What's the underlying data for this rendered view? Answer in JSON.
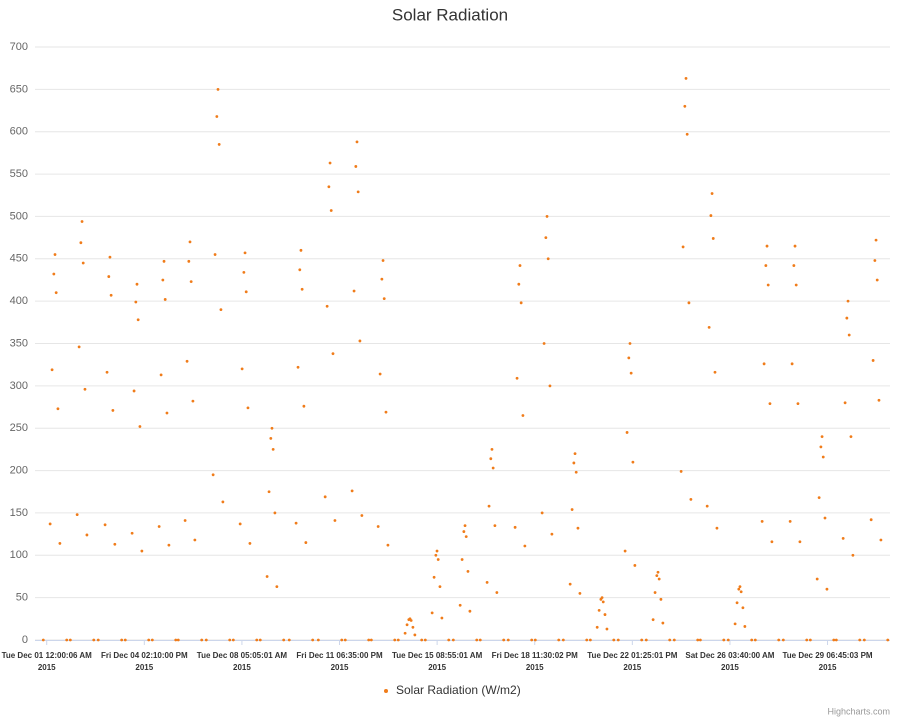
{
  "chart_data": {
    "type": "scatter",
    "title": "Solar Radiation",
    "credits": "Highcharts.com",
    "legend": "bottom",
    "grid": true,
    "ylim": [
      0,
      700
    ],
    "yticks": [
      0,
      50,
      100,
      150,
      200,
      250,
      300,
      350,
      400,
      450,
      500,
      550,
      600,
      650,
      700
    ],
    "xlim": [
      -120,
      8640
    ],
    "xticks": [
      {
        "value": 0,
        "label": "Tue Dec 01 12:00:06 AM",
        "year": "2015"
      },
      {
        "value": 1000,
        "label": "Fri Dec 04 02:10:00 PM",
        "year": "2015"
      },
      {
        "value": 2000,
        "label": "Tue Dec 08 05:05:01 AM",
        "year": "2015"
      },
      {
        "value": 3000,
        "label": "Fri Dec 11 06:35:00 PM",
        "year": "2015"
      },
      {
        "value": 4000,
        "label": "Tue Dec 15 08:55:01 AM",
        "year": "2015"
      },
      {
        "value": 5000,
        "label": "Fri Dec 18 11:30:02 PM",
        "year": "2015"
      },
      {
        "value": 6000,
        "label": "Tue Dec 22 01:25:01 PM",
        "year": "2015"
      },
      {
        "value": 7000,
        "label": "Sat Dec 26 03:40:00 AM",
        "year": "2015"
      },
      {
        "value": 8000,
        "label": "Tue Dec 29 06:45:03 PM",
        "year": "2015"
      }
    ],
    "series": [
      {
        "name": "Solar Radiation (W/m2)",
        "color": "#f07c1a",
        "x": [
          -35,
          35,
          55,
          73,
          85,
          97,
          115,
          135,
          205,
          242,
          312,
          332,
          350,
          362,
          374,
          392,
          412,
          482,
          528,
          598,
          618,
          636,
          648,
          660,
          678,
          698,
          768,
          805,
          875,
          895,
          913,
          925,
          937,
          955,
          975,
          1045,
          1082,
          1152,
          1172,
          1190,
          1202,
          1214,
          1232,
          1252,
          1322,
          1348,
          1418,
          1438,
          1456,
          1468,
          1480,
          1498,
          1518,
          1588,
          1635,
          1705,
          1725,
          1743,
          1755,
          1767,
          1785,
          1805,
          1875,
          1912,
          1982,
          2002,
          2020,
          2032,
          2044,
          2062,
          2082,
          2152,
          2188,
          2258,
          2278,
          2296,
          2308,
          2320,
          2338,
          2358,
          2428,
          2485,
          2555,
          2575,
          2593,
          2605,
          2617,
          2635,
          2655,
          2725,
          2783,
          2853,
          2873,
          2891,
          2903,
          2915,
          2933,
          2953,
          3023,
          3059,
          3129,
          3149,
          3167,
          3179,
          3191,
          3209,
          3229,
          3299,
          3326,
          3396,
          3416,
          3434,
          3446,
          3458,
          3476,
          3496,
          3566,
          3602,
          3672,
          3692,
          3710,
          3722,
          3734,
          3752,
          3772,
          3842,
          3879,
          3949,
          3969,
          3987,
          3999,
          4011,
          4029,
          4049,
          4119,
          4166,
          4236,
          4256,
          4274,
          4286,
          4298,
          4316,
          4336,
          4406,
          4442,
          4512,
          4532,
          4550,
          4562,
          4574,
          4592,
          4612,
          4682,
          4729,
          4799,
          4819,
          4837,
          4849,
          4861,
          4879,
          4899,
          4969,
          5006,
          5076,
          5096,
          5114,
          5126,
          5138,
          5156,
          5176,
          5246,
          5293,
          5363,
          5383,
          5401,
          5413,
          5425,
          5443,
          5463,
          5533,
          5570,
          5640,
          5660,
          5678,
          5690,
          5702,
          5720,
          5740,
          5810,
          5856,
          5926,
          5946,
          5964,
          5976,
          5988,
          6006,
          6026,
          6096,
          6143,
          6213,
          6233,
          6251,
          6263,
          6275,
          6293,
          6313,
          6383,
          6430,
          6500,
          6520,
          6538,
          6550,
          6562,
          6580,
          6600,
          6670,
          6697,
          6767,
          6787,
          6805,
          6817,
          6829,
          6847,
          6867,
          6937,
          6983,
          7053,
          7073,
          7091,
          7103,
          7115,
          7133,
          7153,
          7223,
          7260,
          7330,
          7350,
          7368,
          7380,
          7392,
          7410,
          7430,
          7500,
          7547,
          7617,
          7637,
          7655,
          7667,
          7679,
          7697,
          7717,
          7787,
          7824,
          7894,
          7914,
          7932,
          7944,
          7956,
          7974,
          7994,
          8064,
          8090,
          8160,
          8180,
          8198,
          8210,
          8222,
          8240,
          8260,
          8330,
          8377,
          8447,
          8467,
          8485,
          8497,
          8509,
          8527,
          8547,
          8617
        ],
        "values": [
          0,
          137,
          319,
          432,
          455,
          410,
          273,
          114,
          0,
          0,
          148,
          346,
          469,
          494,
          445,
          296,
          124,
          0,
          0,
          136,
          316,
          429,
          452,
          407,
          271,
          113,
          0,
          0,
          126,
          294,
          399,
          420,
          378,
          252,
          105,
          0,
          0,
          134,
          313,
          425,
          447,
          402,
          268,
          112,
          0,
          0,
          141,
          329,
          447,
          470,
          423,
          282,
          118,
          0,
          0,
          195,
          455,
          618,
          650,
          585,
          390,
          163,
          0,
          0,
          137,
          320,
          434,
          457,
          411,
          274,
          114,
          0,
          0,
          75,
          175,
          238,
          250,
          225,
          150,
          63,
          0,
          0,
          138,
          322,
          437,
          460,
          414,
          276,
          115,
          0,
          0,
          169,
          394,
          535,
          563,
          507,
          338,
          141,
          0,
          0,
          176,
          412,
          559,
          588,
          529,
          353,
          147,
          0,
          0,
          134,
          314,
          426,
          448,
          403,
          269,
          112,
          0,
          0,
          8,
          18,
          24,
          25,
          23,
          15,
          6,
          0,
          0,
          32,
          74,
          100,
          105,
          95,
          63,
          26,
          0,
          0,
          41,
          95,
          128,
          135,
          122,
          81,
          34,
          0,
          0,
          68,
          158,
          214,
          225,
          203,
          135,
          56,
          0,
          0,
          133,
          309,
          420,
          442,
          398,
          265,
          111,
          0,
          0,
          150,
          350,
          475,
          500,
          450,
          300,
          125,
          0,
          0,
          66,
          154,
          209,
          220,
          198,
          132,
          55,
          0,
          0,
          15,
          35,
          48,
          50,
          45,
          30,
          13,
          0,
          0,
          105,
          245,
          333,
          350,
          315,
          210,
          88,
          0,
          0,
          24,
          56,
          76,
          80,
          72,
          48,
          20,
          0,
          0,
          199,
          464,
          630,
          663,
          597,
          398,
          166,
          0,
          0,
          158,
          369,
          501,
          527,
          474,
          316,
          132,
          0,
          0,
          19,
          44,
          60,
          63,
          57,
          38,
          16,
          0,
          0,
          140,
          326,
          442,
          465,
          419,
          279,
          116,
          0,
          0,
          140,
          326,
          442,
          465,
          419,
          279,
          116,
          0,
          0,
          72,
          168,
          228,
          240,
          216,
          144,
          60,
          0,
          0,
          120,
          280,
          380,
          400,
          360,
          240,
          100,
          0,
          0,
          142,
          330,
          448,
          472,
          425,
          283,
          118,
          0
        ]
      }
    ]
  }
}
